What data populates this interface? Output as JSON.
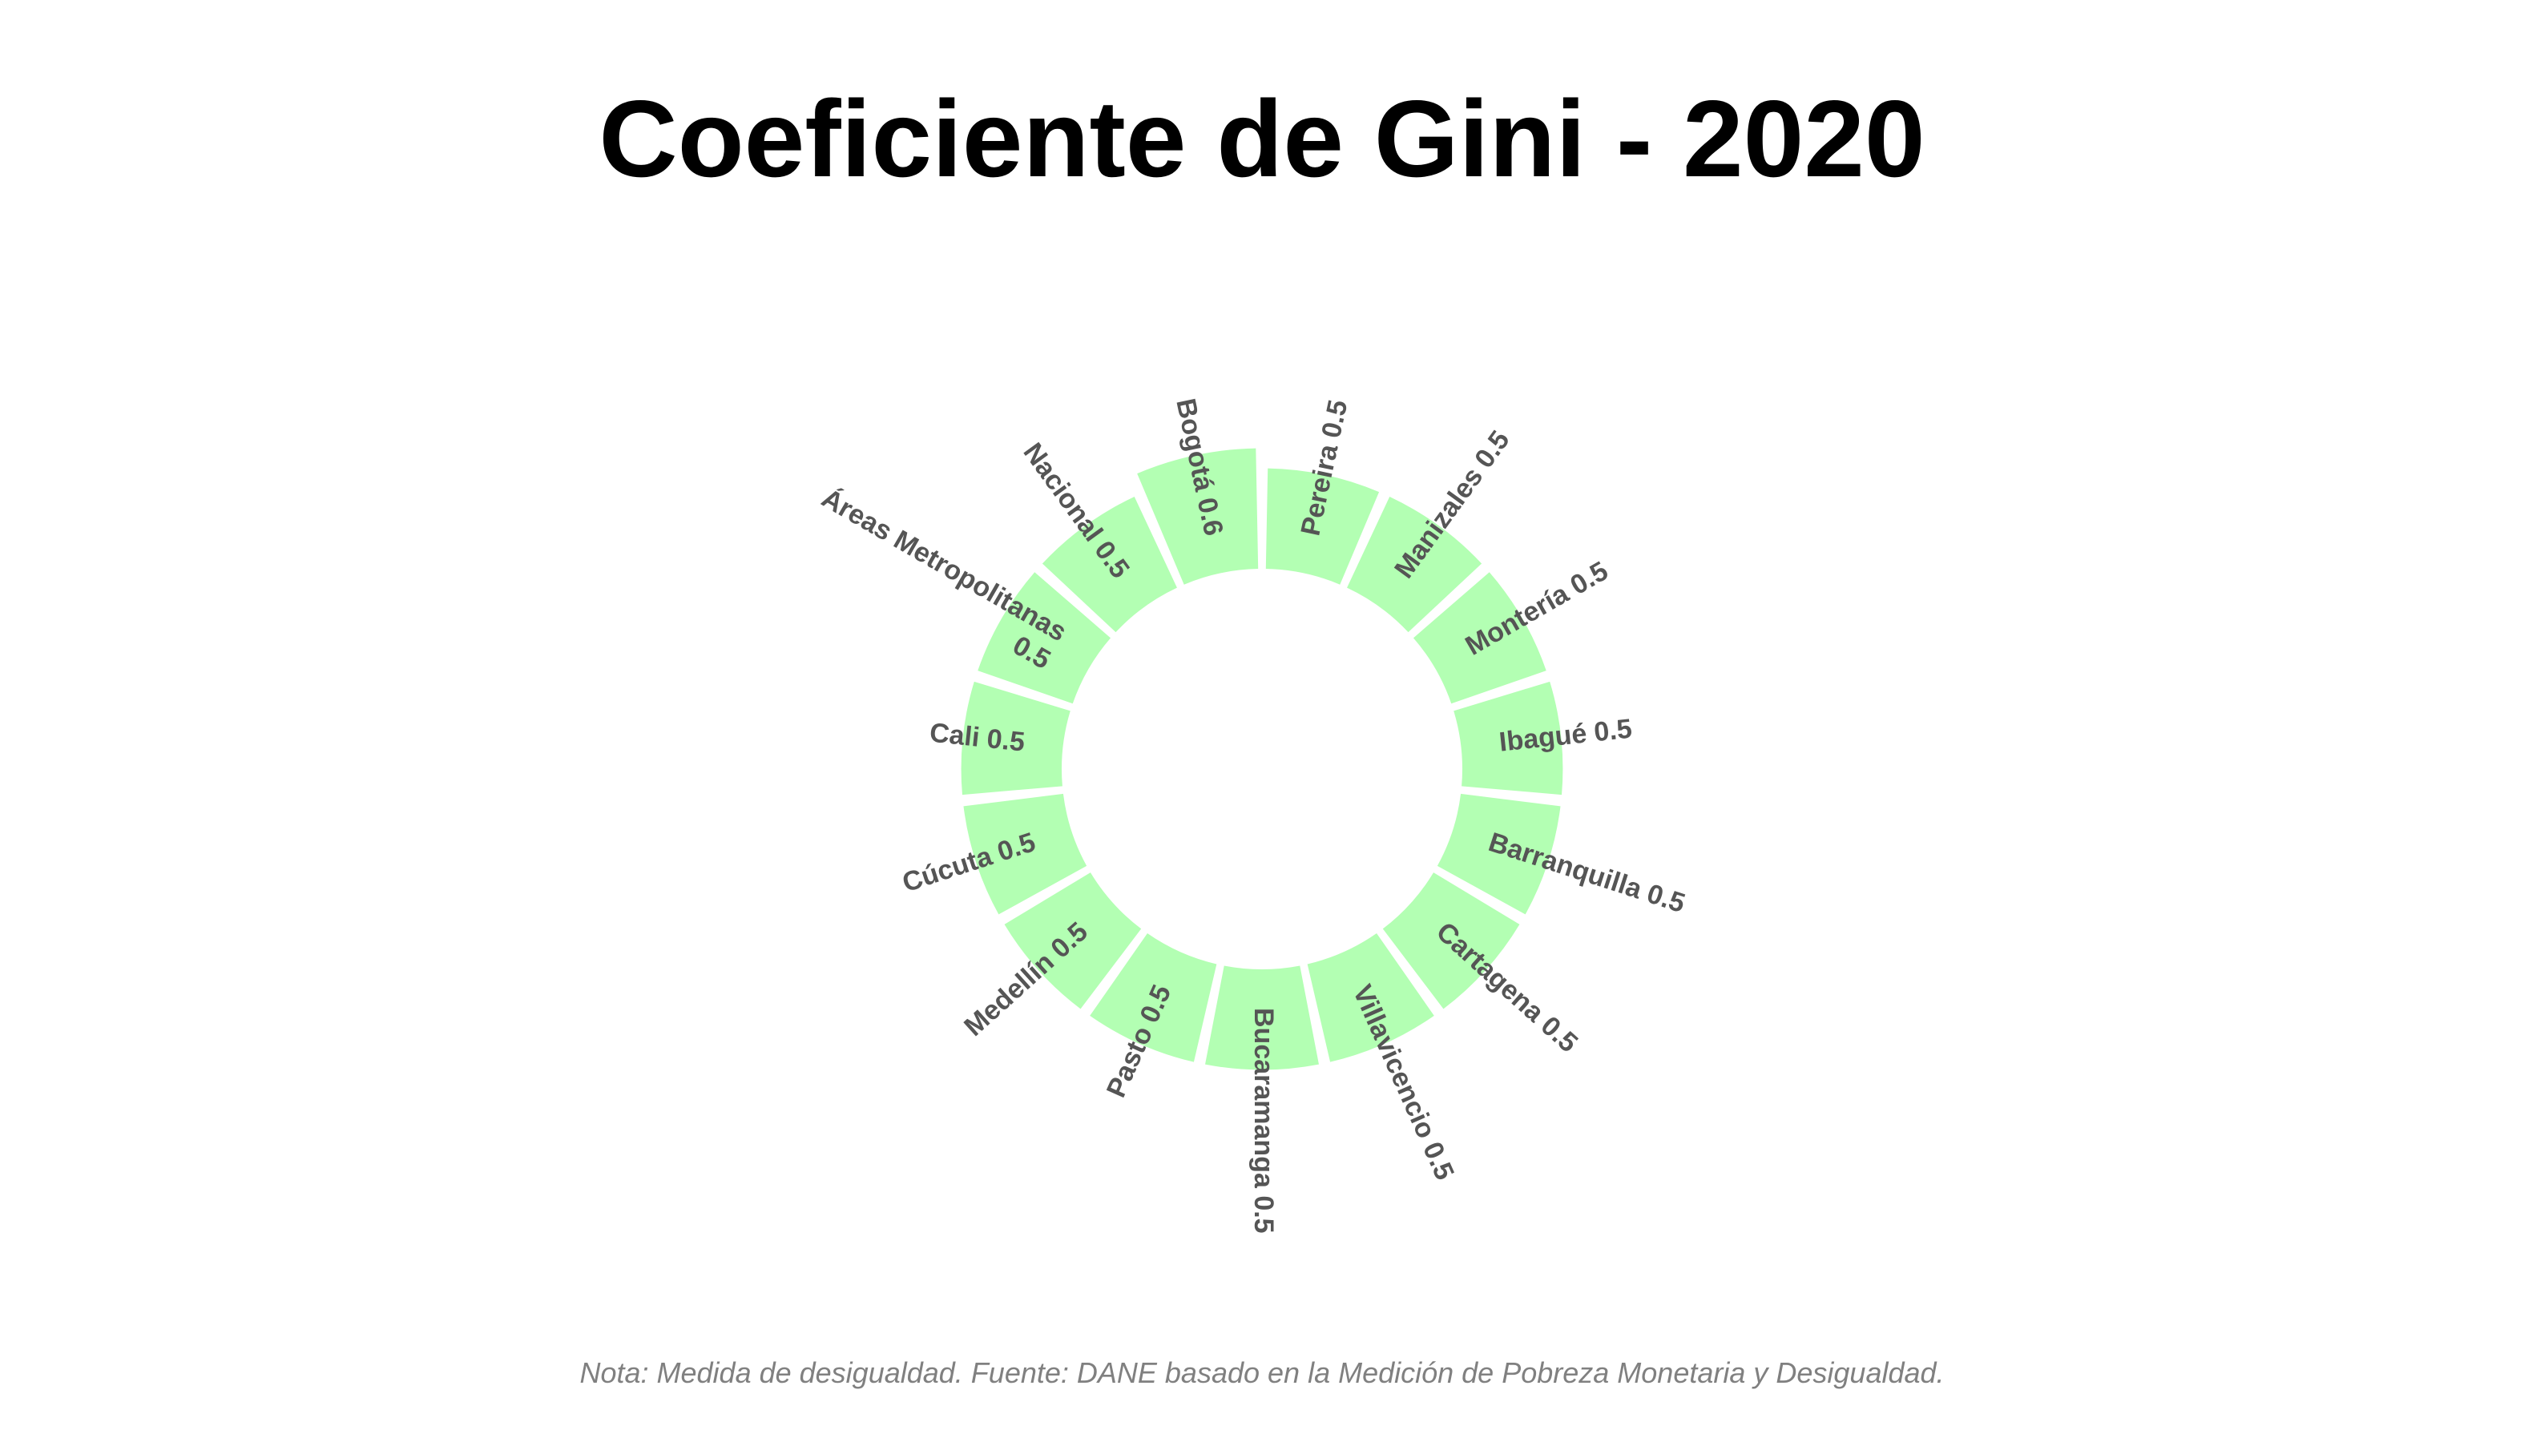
{
  "chart_data": {
    "type": "radial-bar",
    "title": "Coeficiente de Gini - 2020",
    "caption": "Nota: Medida de desigualdad. Fuente: DANE basado en la Medición de Pobreza Monetaria y Desigualdad.",
    "categories": [
      "Pereira",
      "Manizales",
      "Montería",
      "Ibagué",
      "Barranquilla",
      "Cartagena",
      "Villavicencio",
      "Bucaramanga",
      "Pasto",
      "Medellín",
      "Cúcuta",
      "Cali",
      "Áreas Metropolitanas",
      "Nacional",
      "Bogotá"
    ],
    "values": [
      0.5,
      0.5,
      0.5,
      0.5,
      0.5,
      0.5,
      0.5,
      0.5,
      0.5,
      0.5,
      0.5,
      0.5,
      0.5,
      0.5,
      0.6
    ],
    "labels": [
      "Pereira 0.5",
      "Manizales 0.5",
      "Montería 0.5",
      "Ibagué 0.5",
      "Barranquilla 0.5",
      "Cartagena 0.5",
      "Villavicencio 0.5",
      "Bucaramanga 0.5",
      "Pasto 0.5",
      "Medellín 0.5",
      "Cúcuta 0.5",
      "Cali 0.5",
      "Áreas Metropolitanas 0.5",
      "Nacional 0.5",
      "Bogotá 0.6"
    ],
    "colors": {
      "bar": "#b3ffb3",
      "label": "#555555",
      "title": "#000000",
      "caption": "#808080"
    }
  }
}
